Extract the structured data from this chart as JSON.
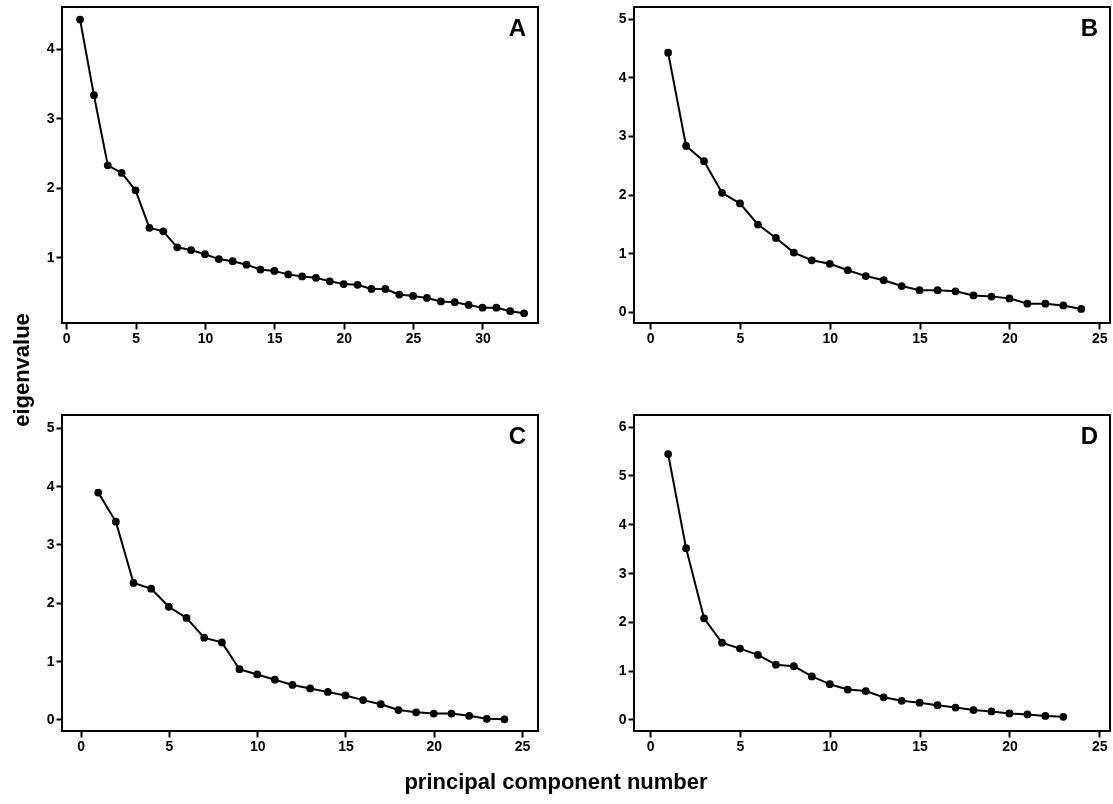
{
  "chart_data": [
    {
      "type": "line",
      "title": "A",
      "ylabel": "eigenvalue",
      "marker": "circle",
      "line_style": "solid",
      "grid": false,
      "x": [
        1,
        2,
        3,
        4,
        5,
        6,
        7,
        8,
        9,
        10,
        11,
        12,
        13,
        14,
        15,
        16,
        17,
        18,
        19,
        20,
        21,
        22,
        23,
        24,
        25,
        26,
        27,
        28,
        29,
        30,
        31,
        32,
        33
      ],
      "series": [
        {
          "color": "#000000",
          "values": [
            4.42,
            3.33,
            2.32,
            2.21,
            1.96,
            1.42,
            1.37,
            1.14,
            1.1,
            1.04,
            0.97,
            0.94,
            0.89,
            0.82,
            0.8,
            0.75,
            0.72,
            0.7,
            0.65,
            0.61,
            0.6,
            0.54,
            0.54,
            0.46,
            0.44,
            0.41,
            0.36,
            0.35,
            0.31,
            0.27,
            0.27,
            0.22,
            0.19
          ]
        }
      ],
      "xlim": [
        -0.3,
        34
      ],
      "xticks": [
        0,
        5,
        10,
        15,
        20,
        25,
        30
      ],
      "ylim": [
        0.05,
        4.6
      ],
      "yticks": [
        1,
        2,
        3,
        4
      ]
    },
    {
      "type": "line",
      "title": "B",
      "marker": "circle",
      "line_style": "solid",
      "grid": false,
      "x": [
        1,
        2,
        3,
        4,
        5,
        6,
        7,
        8,
        9,
        10,
        11,
        12,
        13,
        14,
        15,
        16,
        17,
        18,
        19,
        20,
        21,
        22,
        23,
        24
      ],
      "series": [
        {
          "color": "#000000",
          "values": [
            4.42,
            2.83,
            2.57,
            2.03,
            1.85,
            1.49,
            1.26,
            1.01,
            0.88,
            0.82,
            0.71,
            0.61,
            0.54,
            0.44,
            0.37,
            0.37,
            0.35,
            0.28,
            0.26,
            0.23,
            0.14,
            0.14,
            0.11,
            0.05
          ]
        }
      ],
      "xlim": [
        -0.9,
        25.6
      ],
      "xticks": [
        0,
        5,
        10,
        15,
        20,
        25
      ],
      "ylim": [
        -0.19,
        5.2
      ],
      "yticks": [
        0,
        1,
        2,
        3,
        4,
        5
      ]
    },
    {
      "type": "line",
      "title": "C",
      "xlabel": "principal component number",
      "marker": "circle",
      "line_style": "solid",
      "grid": false,
      "x": [
        1,
        2,
        3,
        4,
        5,
        6,
        7,
        8,
        9,
        10,
        11,
        12,
        13,
        14,
        15,
        16,
        17,
        18,
        19,
        20,
        21,
        22,
        23,
        24
      ],
      "series": [
        {
          "color": "#000000",
          "values": [
            3.89,
            3.39,
            2.34,
            2.24,
            1.93,
            1.74,
            1.4,
            1.32,
            0.86,
            0.77,
            0.68,
            0.59,
            0.53,
            0.47,
            0.41,
            0.33,
            0.26,
            0.16,
            0.12,
            0.1,
            0.1,
            0.06,
            0.01,
            0.0
          ]
        }
      ],
      "xlim": [
        -1.05,
        25.9
      ],
      "xticks": [
        0,
        5,
        10,
        15,
        20,
        25
      ],
      "ylim": [
        -0.2,
        5.22
      ],
      "yticks": [
        0,
        1,
        2,
        3,
        4,
        5
      ]
    },
    {
      "type": "line",
      "title": "D",
      "marker": "circle",
      "line_style": "solid",
      "grid": false,
      "x": [
        1,
        2,
        3,
        4,
        5,
        6,
        7,
        8,
        9,
        10,
        11,
        12,
        13,
        14,
        15,
        16,
        17,
        18,
        19,
        20,
        21,
        22,
        23
      ],
      "series": [
        {
          "color": "#000000",
          "values": [
            5.44,
            3.51,
            2.07,
            1.57,
            1.45,
            1.32,
            1.12,
            1.09,
            0.88,
            0.72,
            0.61,
            0.58,
            0.45,
            0.38,
            0.34,
            0.29,
            0.24,
            0.19,
            0.16,
            0.12,
            0.1,
            0.07,
            0.05
          ]
        }
      ],
      "xlim": [
        -0.9,
        25.6
      ],
      "xticks": [
        0,
        5,
        10,
        15,
        20,
        25
      ],
      "ylim": [
        -0.24,
        6.24
      ],
      "yticks": [
        0,
        1,
        2,
        3,
        4,
        5,
        6
      ]
    }
  ]
}
